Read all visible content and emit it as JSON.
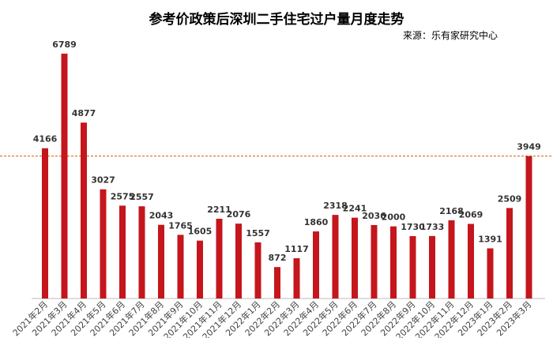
{
  "title": "参考价政策后深圳二手住宅过户量月度走势",
  "source": "来源：乐有家研究中心",
  "chart_data": {
    "type": "bar",
    "title": "参考价政策后深圳二手住宅过户量月度走势",
    "categories": [
      "2021年2月",
      "2021年3月",
      "2021年4月",
      "2021年5月",
      "2021年6月",
      "2021年7月",
      "2021年8月",
      "2021年9月",
      "2021年10月",
      "2021年11月",
      "2021年12月",
      "2022年1月",
      "2022年2月",
      "2022年3月",
      "2022年4月",
      "2022年5月",
      "2022年6月",
      "2022年7月",
      "2022年8月",
      "2022年9月",
      "2022年10月",
      "2022年11月",
      "2022年12月",
      "2023年1月",
      "2023年2月",
      "2023年3月"
    ],
    "values": [
      4166,
      6789,
      4877,
      3027,
      2575,
      2557,
      2043,
      1765,
      1605,
      2211,
      2076,
      1557,
      872,
      1117,
      1860,
      2318,
      2241,
      2036,
      2000,
      1730,
      1733,
      2168,
      2069,
      1391,
      2509,
      3949
    ],
    "reference_line": 3949,
    "ylim": [
      0,
      7400
    ],
    "bar_color": "#c4161c",
    "reference_line_color": "#e07b2c",
    "xlabel": "",
    "ylabel": ""
  }
}
